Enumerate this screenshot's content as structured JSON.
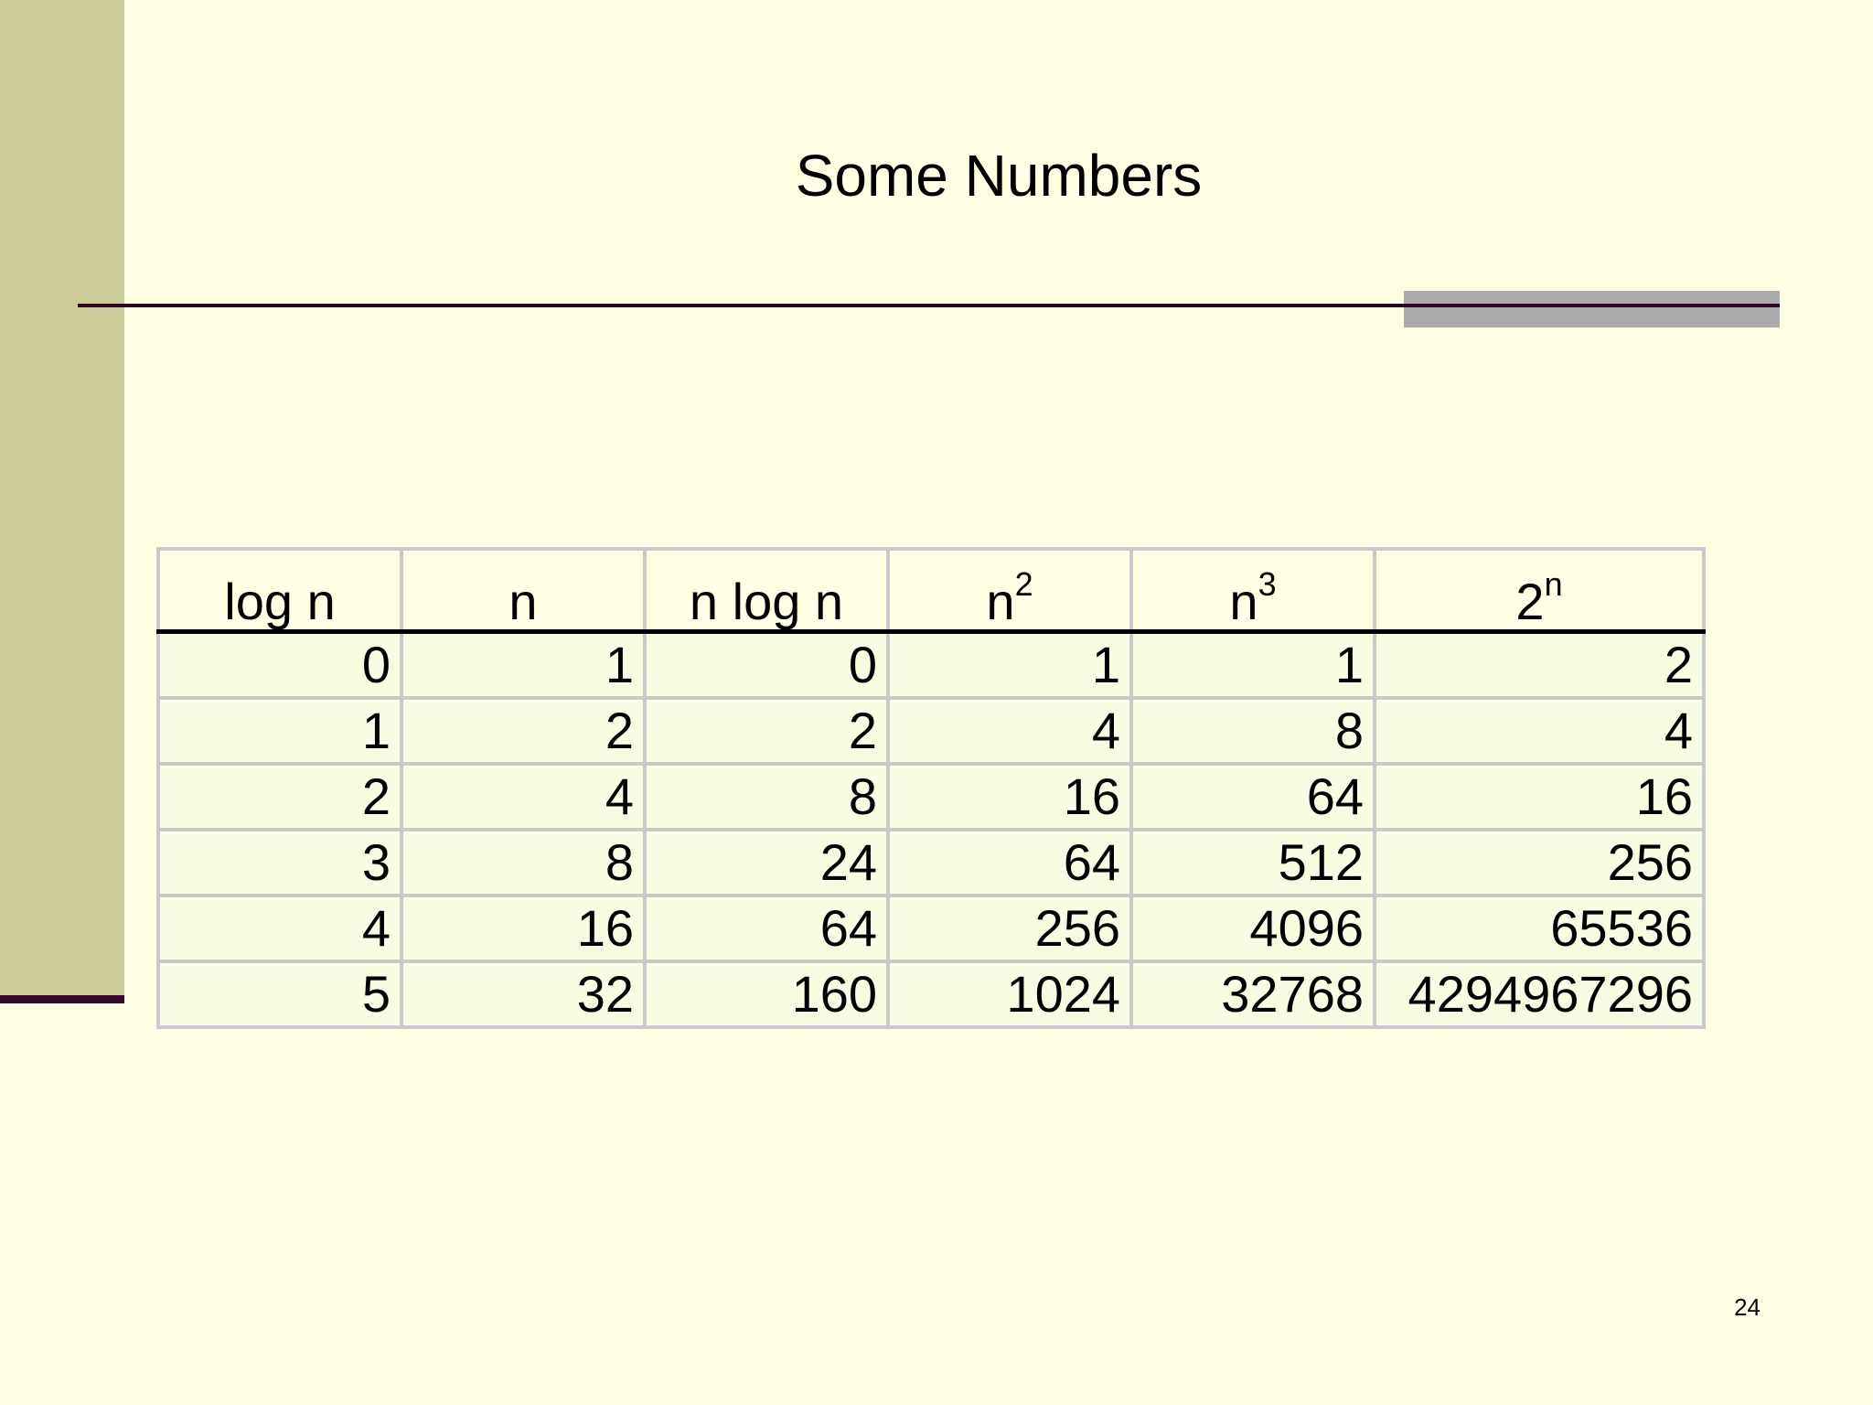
{
  "slide": {
    "title": "Some Numbers",
    "page_number": "24",
    "colors": {
      "background": "#FFFFE3",
      "side_band": "#CBCB9A",
      "accent_line": "#2B0522",
      "line_shadow": "#ABABAB"
    }
  },
  "table": {
    "headers": [
      {
        "base": "log n",
        "sup": ""
      },
      {
        "base": "n",
        "sup": ""
      },
      {
        "base": "n log n",
        "sup": ""
      },
      {
        "base": "n",
        "sup": "2"
      },
      {
        "base": "n",
        "sup": "3"
      },
      {
        "base": "2",
        "sup": "n"
      }
    ],
    "rows": [
      [
        "0",
        "1",
        "0",
        "1",
        "1",
        "2"
      ],
      [
        "1",
        "2",
        "2",
        "4",
        "8",
        "4"
      ],
      [
        "2",
        "4",
        "8",
        "16",
        "64",
        "16"
      ],
      [
        "3",
        "8",
        "24",
        "64",
        "512",
        "256"
      ],
      [
        "4",
        "16",
        "64",
        "256",
        "4096",
        "65536"
      ],
      [
        "5",
        "32",
        "160",
        "1024",
        "32768",
        "4294967296"
      ]
    ]
  }
}
